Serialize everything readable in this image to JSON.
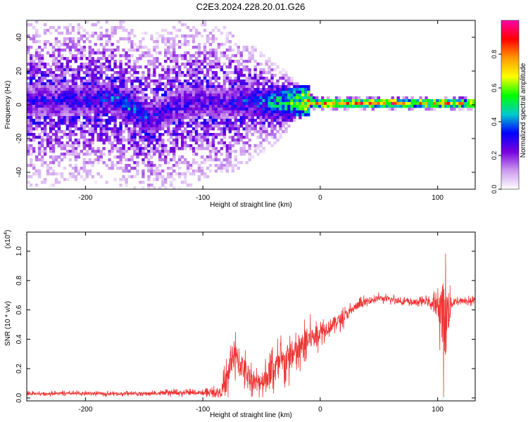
{
  "title": "C2E3.2024.228.20.01.G26",
  "chart_data": [
    {
      "type": "heatmap",
      "xlabel": "Height of straight line (km)",
      "ylabel": "Frequency (Hz)",
      "xlim": [
        -250,
        132
      ],
      "ylim": [
        -50,
        50
      ],
      "xticks": [
        -200,
        -100,
        0,
        100
      ],
      "yticks": [
        -40,
        -20,
        0,
        20,
        40
      ],
      "colorbar": {
        "label": "Normalized spectral amplitude",
        "range": [
          0,
          1
        ],
        "ticks": [
          "0.0",
          "0.2",
          "0.4",
          "0.6",
          "0.8"
        ],
        "tick_values": [
          0,
          0.2,
          0.4,
          0.6,
          0.8
        ],
        "colors": [
          "#ffffff",
          "#cc99ee",
          "#7700dd",
          "#0000ff",
          "#00cccc",
          "#00ff00",
          "#ffff00",
          "#ff9900",
          "#ff0000",
          "#ff00aa"
        ]
      },
      "ridge": {
        "description_points_x": [
          -250,
          -200,
          -175,
          -160,
          -145,
          -120,
          -100,
          -80,
          -60,
          -40,
          -20,
          -10,
          0,
          20,
          40,
          60,
          80,
          100,
          110,
          132
        ],
        "center_freq_hz": [
          2,
          3,
          4,
          -3,
          -8,
          0,
          2,
          1,
          2,
          1,
          2,
          2,
          1,
          1,
          1,
          1,
          1,
          1,
          1,
          1
        ],
        "noise_spread_hz": [
          50,
          50,
          50,
          50,
          50,
          50,
          48,
          45,
          35,
          25,
          12,
          6,
          4,
          4,
          4,
          4,
          4,
          4,
          4,
          4
        ],
        "peak_amplitude": [
          0.3,
          0.35,
          0.4,
          0.45,
          0.35,
          0.3,
          0.3,
          0.3,
          0.4,
          0.5,
          0.65,
          0.85,
          0.95,
          0.9,
          0.85,
          0.9,
          0.85,
          0.9,
          0.85,
          0.8
        ]
      }
    },
    {
      "type": "line",
      "xlabel": "Height of straight line (km)",
      "ylabel": "SNR (10 * v/v)",
      "scale_label": "(x10",
      "scale_exponent": "4",
      "scale_suffix": ")",
      "xlim": [
        -250,
        132
      ],
      "ylim": [
        -0.02,
        1.13
      ],
      "xticks": [
        -200,
        -100,
        0,
        100
      ],
      "yticks": [
        "0.0",
        "0.2",
        "0.4",
        "0.6",
        "0.8",
        "1.0"
      ],
      "ytick_values": [
        0,
        0.2,
        0.4,
        0.6,
        0.8,
        1.0
      ],
      "color": "#ee3333",
      "series": [
        {
          "x": [
            -250,
            -200,
            -150,
            -120,
            -100,
            -85,
            -80,
            -75,
            -70,
            -65,
            -60,
            -55,
            -50,
            -45,
            -40,
            -35,
            -30,
            -25,
            -20,
            -15,
            -10,
            -5,
            0,
            10,
            20,
            30,
            40,
            50,
            60,
            70,
            80,
            90,
            95,
            100,
            103,
            105,
            107,
            109,
            111,
            115,
            120,
            132
          ],
          "y_mean": [
            0.03,
            0.03,
            0.03,
            0.035,
            0.035,
            0.04,
            0.1,
            0.3,
            0.25,
            0.2,
            0.15,
            0.1,
            0.12,
            0.15,
            0.2,
            0.22,
            0.25,
            0.28,
            0.3,
            0.35,
            0.4,
            0.42,
            0.45,
            0.5,
            0.55,
            0.62,
            0.66,
            0.68,
            0.67,
            0.66,
            0.65,
            0.66,
            0.64,
            0.63,
            0.6,
            0.55,
            0.5,
            0.6,
            0.64,
            0.66,
            0.66,
            0.66
          ],
          "y_spread": [
            0.02,
            0.02,
            0.02,
            0.03,
            0.03,
            0.06,
            0.2,
            0.25,
            0.2,
            0.17,
            0.14,
            0.12,
            0.15,
            0.18,
            0.22,
            0.22,
            0.22,
            0.2,
            0.2,
            0.2,
            0.18,
            0.15,
            0.12,
            0.1,
            0.08,
            0.06,
            0.05,
            0.04,
            0.04,
            0.04,
            0.04,
            0.04,
            0.08,
            0.12,
            0.4,
            0.55,
            0.55,
            0.4,
            0.1,
            0.05,
            0.04,
            0.04
          ]
        }
      ]
    }
  ]
}
